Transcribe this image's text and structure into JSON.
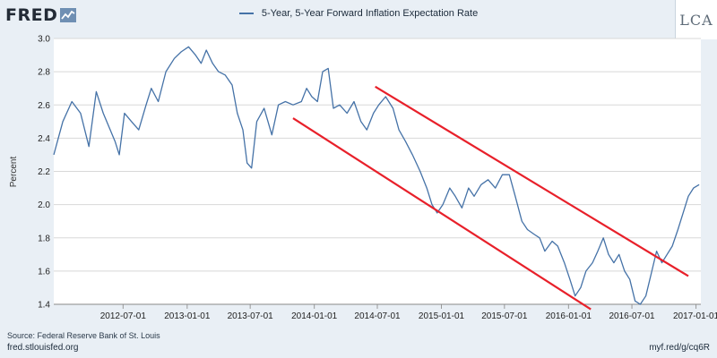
{
  "brand": {
    "logo_text": "FRED",
    "logo_icon": "trend-line-icon",
    "watermark": "LCA"
  },
  "footer": {
    "source": "Source: Federal Reserve Bank of St. Louis",
    "site": "fred.stlouisfed.org",
    "short_url": "myf.red/g/cq6R"
  },
  "colors": {
    "series": "#4572a7",
    "annotation": "#e8202a",
    "grid": "#d8d8d8"
  },
  "chart_data": {
    "type": "line",
    "title": "",
    "ylabel": "Percent",
    "xlabel": "",
    "ylim": [
      1.4,
      3.0
    ],
    "yticks": [
      1.4,
      1.6,
      1.8,
      2.0,
      2.2,
      2.4,
      2.6,
      2.8,
      3.0
    ],
    "ytick_labels": [
      "1.4",
      "1.6",
      "1.8",
      "2.0",
      "2.2",
      "2.4",
      "2.6",
      "2.8",
      "3.0"
    ],
    "xlim": [
      "2011-12-15",
      "2017-01-15"
    ],
    "xticks": [
      "2012-07-01",
      "2013-01-01",
      "2013-07-01",
      "2014-01-01",
      "2014-07-01",
      "2015-01-01",
      "2015-07-01",
      "2016-01-01",
      "2016-07-01",
      "2017-01-01"
    ],
    "grid": true,
    "legend": "top-center",
    "series": [
      {
        "name": "5-Year, 5-Year Forward Inflation Expectation Rate",
        "x": [
          "2011-12-15",
          "2012-01-10",
          "2012-02-05",
          "2012-03-01",
          "2012-03-25",
          "2012-04-15",
          "2012-05-05",
          "2012-05-25",
          "2012-06-08",
          "2012-06-20",
          "2012-07-05",
          "2012-07-25",
          "2012-08-15",
          "2012-09-05",
          "2012-09-20",
          "2012-10-10",
          "2012-11-01",
          "2012-11-25",
          "2012-12-15",
          "2013-01-05",
          "2013-01-25",
          "2013-02-10",
          "2013-02-25",
          "2013-03-15",
          "2013-04-01",
          "2013-04-20",
          "2013-05-10",
          "2013-05-25",
          "2013-06-10",
          "2013-06-22",
          "2013-07-05",
          "2013-07-20",
          "2013-08-10",
          "2013-09-01",
          "2013-09-20",
          "2013-10-10",
          "2013-11-01",
          "2013-11-25",
          "2013-12-10",
          "2013-12-25",
          "2014-01-10",
          "2014-01-25",
          "2014-02-10",
          "2014-02-25",
          "2014-03-15",
          "2014-04-05",
          "2014-04-25",
          "2014-05-15",
          "2014-06-01",
          "2014-06-20",
          "2014-07-05",
          "2014-07-25",
          "2014-08-15",
          "2014-09-01",
          "2014-09-20",
          "2014-10-10",
          "2014-11-01",
          "2014-11-20",
          "2014-12-05",
          "2014-12-20",
          "2015-01-05",
          "2015-01-25",
          "2015-02-10",
          "2015-03-01",
          "2015-03-20",
          "2015-04-05",
          "2015-04-25",
          "2015-05-15",
          "2015-06-05",
          "2015-06-25",
          "2015-07-15",
          "2015-08-01",
          "2015-08-20",
          "2015-09-05",
          "2015-09-25",
          "2015-10-10",
          "2015-10-25",
          "2015-11-15",
          "2015-12-01",
          "2015-12-20",
          "2016-01-05",
          "2016-01-20",
          "2016-02-05",
          "2016-02-20",
          "2016-03-10",
          "2016-03-25",
          "2016-04-10",
          "2016-04-25",
          "2016-05-10",
          "2016-05-25",
          "2016-06-10",
          "2016-06-25",
          "2016-07-10",
          "2016-07-25",
          "2016-08-10",
          "2016-08-25",
          "2016-09-10",
          "2016-09-25",
          "2016-10-10",
          "2016-10-25",
          "2016-11-10",
          "2016-11-25",
          "2016-12-10",
          "2016-12-25",
          "2017-01-10"
        ],
        "values": [
          2.3,
          2.5,
          2.62,
          2.55,
          2.35,
          2.68,
          2.55,
          2.45,
          2.38,
          2.3,
          2.55,
          2.5,
          2.45,
          2.6,
          2.7,
          2.62,
          2.8,
          2.88,
          2.92,
          2.95,
          2.9,
          2.85,
          2.93,
          2.85,
          2.8,
          2.78,
          2.72,
          2.55,
          2.45,
          2.25,
          2.22,
          2.5,
          2.58,
          2.42,
          2.6,
          2.62,
          2.6,
          2.62,
          2.7,
          2.65,
          2.62,
          2.8,
          2.82,
          2.58,
          2.6,
          2.55,
          2.62,
          2.5,
          2.45,
          2.55,
          2.6,
          2.65,
          2.58,
          2.45,
          2.38,
          2.3,
          2.2,
          2.1,
          2.0,
          1.95,
          2.0,
          2.1,
          2.05,
          1.98,
          2.1,
          2.05,
          2.12,
          2.15,
          2.1,
          2.18,
          2.18,
          2.05,
          1.9,
          1.85,
          1.82,
          1.8,
          1.72,
          1.78,
          1.75,
          1.65,
          1.55,
          1.45,
          1.5,
          1.6,
          1.65,
          1.72,
          1.8,
          1.7,
          1.65,
          1.7,
          1.6,
          1.55,
          1.42,
          1.4,
          1.45,
          1.58,
          1.72,
          1.65,
          1.7,
          1.75,
          1.85,
          1.95,
          2.05,
          2.1,
          2.12
        ]
      }
    ],
    "annotations": [
      {
        "type": "trend-line",
        "from": [
          "2013-11-01",
          2.52
        ],
        "to": [
          "2016-03-05",
          1.37
        ]
      },
      {
        "type": "trend-line",
        "from": [
          "2014-06-25",
          2.71
        ],
        "to": [
          "2016-12-10",
          1.57
        ]
      }
    ]
  }
}
